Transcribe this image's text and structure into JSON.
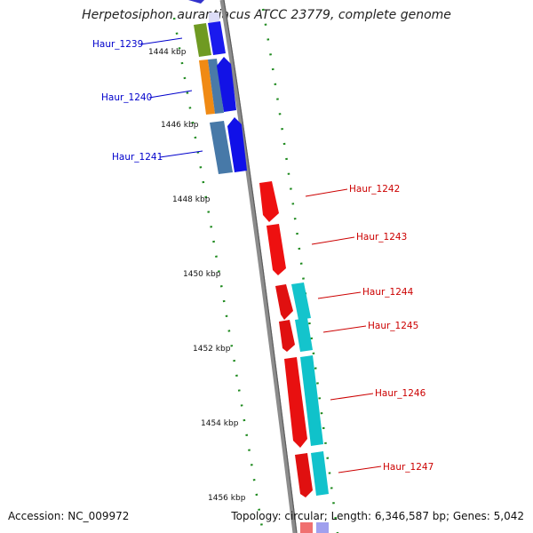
{
  "title": "Herpetosiphon aurantiacus ATCC 23779, complete genome",
  "accession": "Accession: NC_009972",
  "summary": "Topology: circular; Length: 6,346,587 bp; Genes: 5,042",
  "colors": {
    "minus_label": "#0000cc",
    "plus_label": "#cc0000",
    "backbone": "#8c8c8c",
    "kbp_tick": "#1f8a1f"
  },
  "kbp_ticks": [
    "1444 kbp",
    "1446 kbp",
    "1448 kbp",
    "1450 kbp",
    "1452 kbp",
    "1454 kbp",
    "1456 kbp"
  ],
  "genes": [
    {
      "label": "Haur_1239",
      "strand": "minus",
      "tracks": [
        "olive-green",
        "blue"
      ]
    },
    {
      "label": "Haur_1240",
      "strand": "minus",
      "tracks": [
        "orange",
        "steel-blue",
        "blue"
      ]
    },
    {
      "label": "Haur_1241",
      "strand": "minus",
      "tracks": [
        "steel-blue",
        "blue"
      ]
    },
    {
      "label": "Haur_1242",
      "strand": "plus",
      "tracks": [
        "red"
      ]
    },
    {
      "label": "Haur_1243",
      "strand": "plus",
      "tracks": [
        "red"
      ]
    },
    {
      "label": "Haur_1244",
      "strand": "plus",
      "tracks": [
        "red",
        "cyan"
      ]
    },
    {
      "label": "Haur_1245",
      "strand": "plus",
      "tracks": [
        "red",
        "cyan"
      ]
    },
    {
      "label": "Haur_1246",
      "strand": "plus",
      "tracks": [
        "red",
        "cyan"
      ]
    },
    {
      "label": "Haur_1247",
      "strand": "plus",
      "tracks": [
        "red",
        "cyan"
      ]
    }
  ]
}
